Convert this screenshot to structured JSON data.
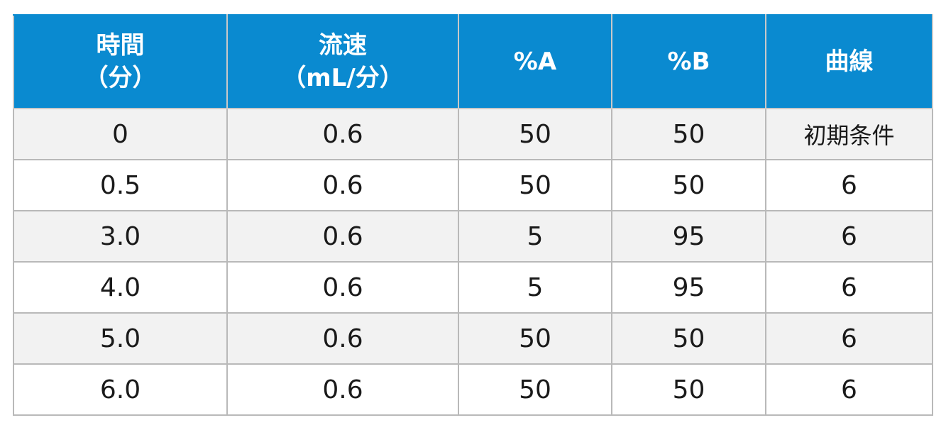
{
  "table": {
    "headers": [
      {
        "line1": "時間",
        "line2": "（分）"
      },
      {
        "line1": "流速",
        "line2": "（mL/分）"
      },
      {
        "line1": "%A",
        "line2": ""
      },
      {
        "line1": "%B",
        "line2": ""
      },
      {
        "line1": "曲線",
        "line2": ""
      }
    ],
    "rows": [
      [
        "0",
        "0.6",
        "50",
        "50",
        "初期条件"
      ],
      [
        "0.5",
        "0.6",
        "50",
        "50",
        "6"
      ],
      [
        "3.0",
        "0.6",
        "5",
        "95",
        "6"
      ],
      [
        "4.0",
        "0.6",
        "5",
        "95",
        "6"
      ],
      [
        "5.0",
        "0.6",
        "50",
        "50",
        "6"
      ],
      [
        "6.0",
        "0.6",
        "50",
        "50",
        "6"
      ]
    ]
  },
  "colors": {
    "header_bg": "#0a8ad0",
    "header_text": "#ffffff",
    "row_alt_bg": "#f2f2f2",
    "border": "#b9b9b9"
  }
}
